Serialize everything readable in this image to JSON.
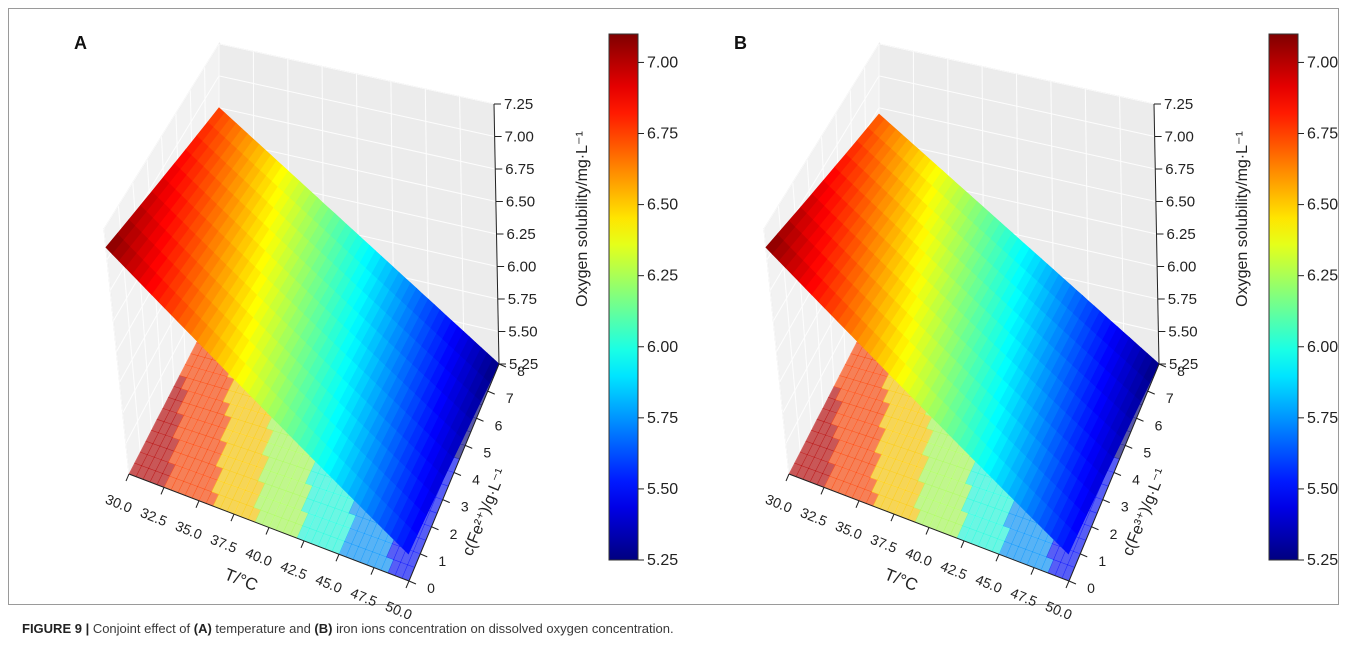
{
  "caption": {
    "label": "FIGURE 9 |",
    "text_1": " Conjoint effect of ",
    "ref_a": "(A)",
    "text_2": " temperature and ",
    "ref_b": "(B)",
    "text_3": " iron ions concentration on dissolved oxygen concentration."
  },
  "chart_data": [
    {
      "panel": "A",
      "type": "surface3d",
      "colormap": "jet",
      "xlabel": "T/°C",
      "ylabel": "c(Fe²⁺)/g·L⁻¹",
      "zlabel": "Oxygen solubility/mg·L⁻¹",
      "x_ticks": [
        "30.0",
        "32.5",
        "35.0",
        "37.5",
        "40.0",
        "42.5",
        "45.0",
        "47.5",
        "50.0"
      ],
      "y_ticks": [
        "0",
        "1",
        "2",
        "3",
        "4",
        "5",
        "6",
        "7",
        "8"
      ],
      "z_ticks": [
        "5.25",
        "5.50",
        "5.75",
        "6.00",
        "6.25",
        "6.50",
        "6.75",
        "7.00",
        "7.25"
      ],
      "xlim": [
        30,
        50
      ],
      "ylim": [
        0,
        8
      ],
      "zlim": [
        5.25,
        7.25
      ],
      "grid": true,
      "colorbar": {
        "ticks": [
          "5.25",
          "5.50",
          "5.75",
          "6.00",
          "6.25",
          "6.50",
          "6.75",
          "7.00"
        ],
        "range": [
          5.25,
          7.1
        ]
      },
      "surface": {
        "x": [
          30,
          50
        ],
        "y": [
          0,
          8
        ],
        "z": [
          [
            7.1,
            6.75
          ],
          [
            5.5,
            5.25
          ]
        ],
        "rows_index": "x",
        "cols_index": "y"
      },
      "floor_contour": true
    },
    {
      "panel": "B",
      "type": "surface3d",
      "colormap": "jet",
      "xlabel": "T/°C",
      "ylabel": "c(Fe³⁺)/g·L⁻¹",
      "zlabel": "Oxygen solubility/mg·L⁻¹",
      "x_ticks": [
        "30.0",
        "32.5",
        "35.0",
        "37.5",
        "40.0",
        "42.5",
        "45.0",
        "47.5",
        "50.0"
      ],
      "y_ticks": [
        "0",
        "1",
        "2",
        "3",
        "4",
        "5",
        "6",
        "7",
        "8"
      ],
      "z_ticks": [
        "5.25",
        "5.50",
        "5.75",
        "6.00",
        "6.25",
        "6.50",
        "6.75",
        "7.00",
        "7.25"
      ],
      "xlim": [
        30,
        50
      ],
      "ylim": [
        0,
        8
      ],
      "zlim": [
        5.25,
        7.25
      ],
      "grid": true,
      "colorbar": {
        "ticks": [
          "5.25",
          "5.50",
          "5.75",
          "6.00",
          "6.25",
          "6.50",
          "6.75",
          "7.00"
        ],
        "range": [
          5.25,
          7.1
        ]
      },
      "surface": {
        "x": [
          30,
          50
        ],
        "y": [
          0,
          8
        ],
        "z": [
          [
            7.1,
            6.7
          ],
          [
            5.5,
            5.25
          ]
        ],
        "rows_index": "x",
        "cols_index": "y"
      },
      "floor_contour": true
    }
  ]
}
